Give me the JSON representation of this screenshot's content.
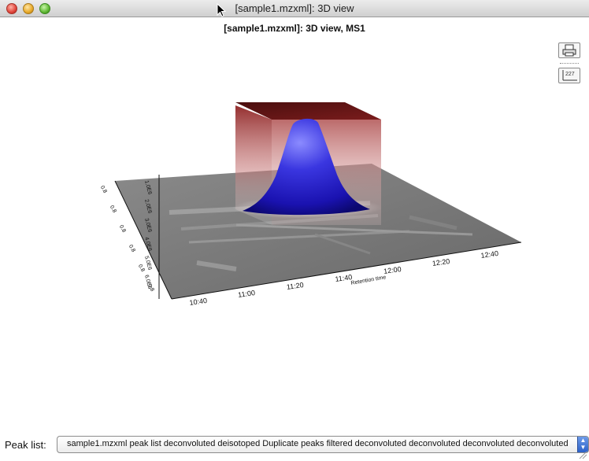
{
  "window": {
    "title": "[sample1.mzxml]: 3D view",
    "buttons": [
      "close",
      "minimize",
      "zoom"
    ]
  },
  "plot": {
    "title": "[sample1.mzxml]: 3D view, MS1",
    "x_axis_label": "Retention time",
    "x_ticks": [
      "10:40",
      "11:00",
      "11:20",
      "11:40",
      "12:00",
      "12:20",
      "12:40"
    ],
    "y_ticks": [
      "0.8",
      "0.8",
      "0.8",
      "0.8",
      "0.8",
      "0.8"
    ],
    "z_ticks": [
      "1.0E6",
      "2.0E6",
      "3.0E6",
      "4.0E6",
      "5.0E6",
      "6.0E6"
    ],
    "colors": {
      "peak": "#1a14c8",
      "box": "#8a1e1e",
      "floor": "#7a7a7a"
    }
  },
  "toolbar": {
    "icons": [
      "print-icon",
      "axis-scale-icon"
    ],
    "scale_icon_text": "227"
  },
  "bottom": {
    "peak_list_label": "Peak list:",
    "peak_list_value": "sample1.mzxml peak list deconvoluted deisotoped Duplicate peaks filtered deconvoluted deconvoluted deconvoluted deconvoluted"
  }
}
